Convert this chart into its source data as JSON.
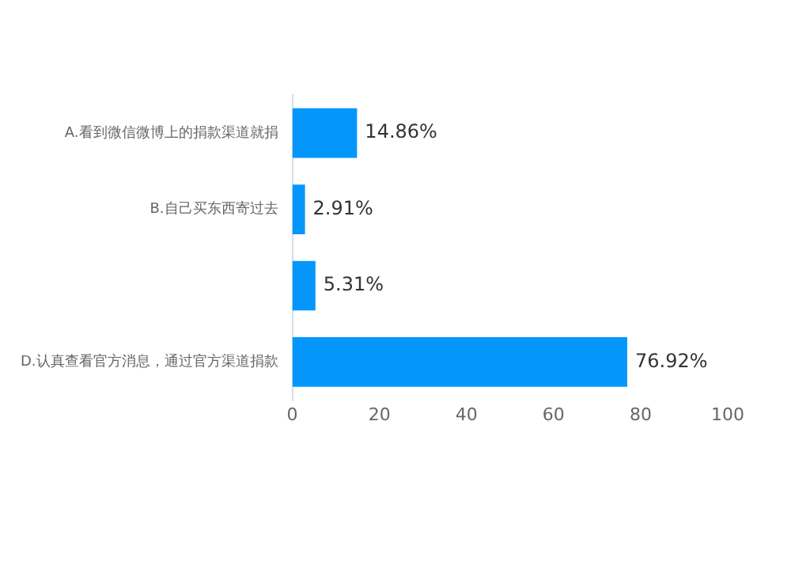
{
  "chart_data": {
    "type": "bar",
    "orientation": "horizontal",
    "categories": [
      "A.看到微信微博上的捐款渠道就捐",
      "B.自己买东西寄过去",
      null,
      "D.认真查看官方消息，通过官方渠道捐款"
    ],
    "values": [
      14.86,
      2.91,
      5.31,
      76.92
    ],
    "color": "#0497fb",
    "value_labels": [
      "14.86%",
      "2.91%",
      "5.31%",
      "76.92%"
    ],
    "xlim": [
      0,
      100
    ],
    "xticks": [
      0,
      20,
      40,
      60,
      80,
      100
    ],
    "grid": false,
    "legend": false
  }
}
